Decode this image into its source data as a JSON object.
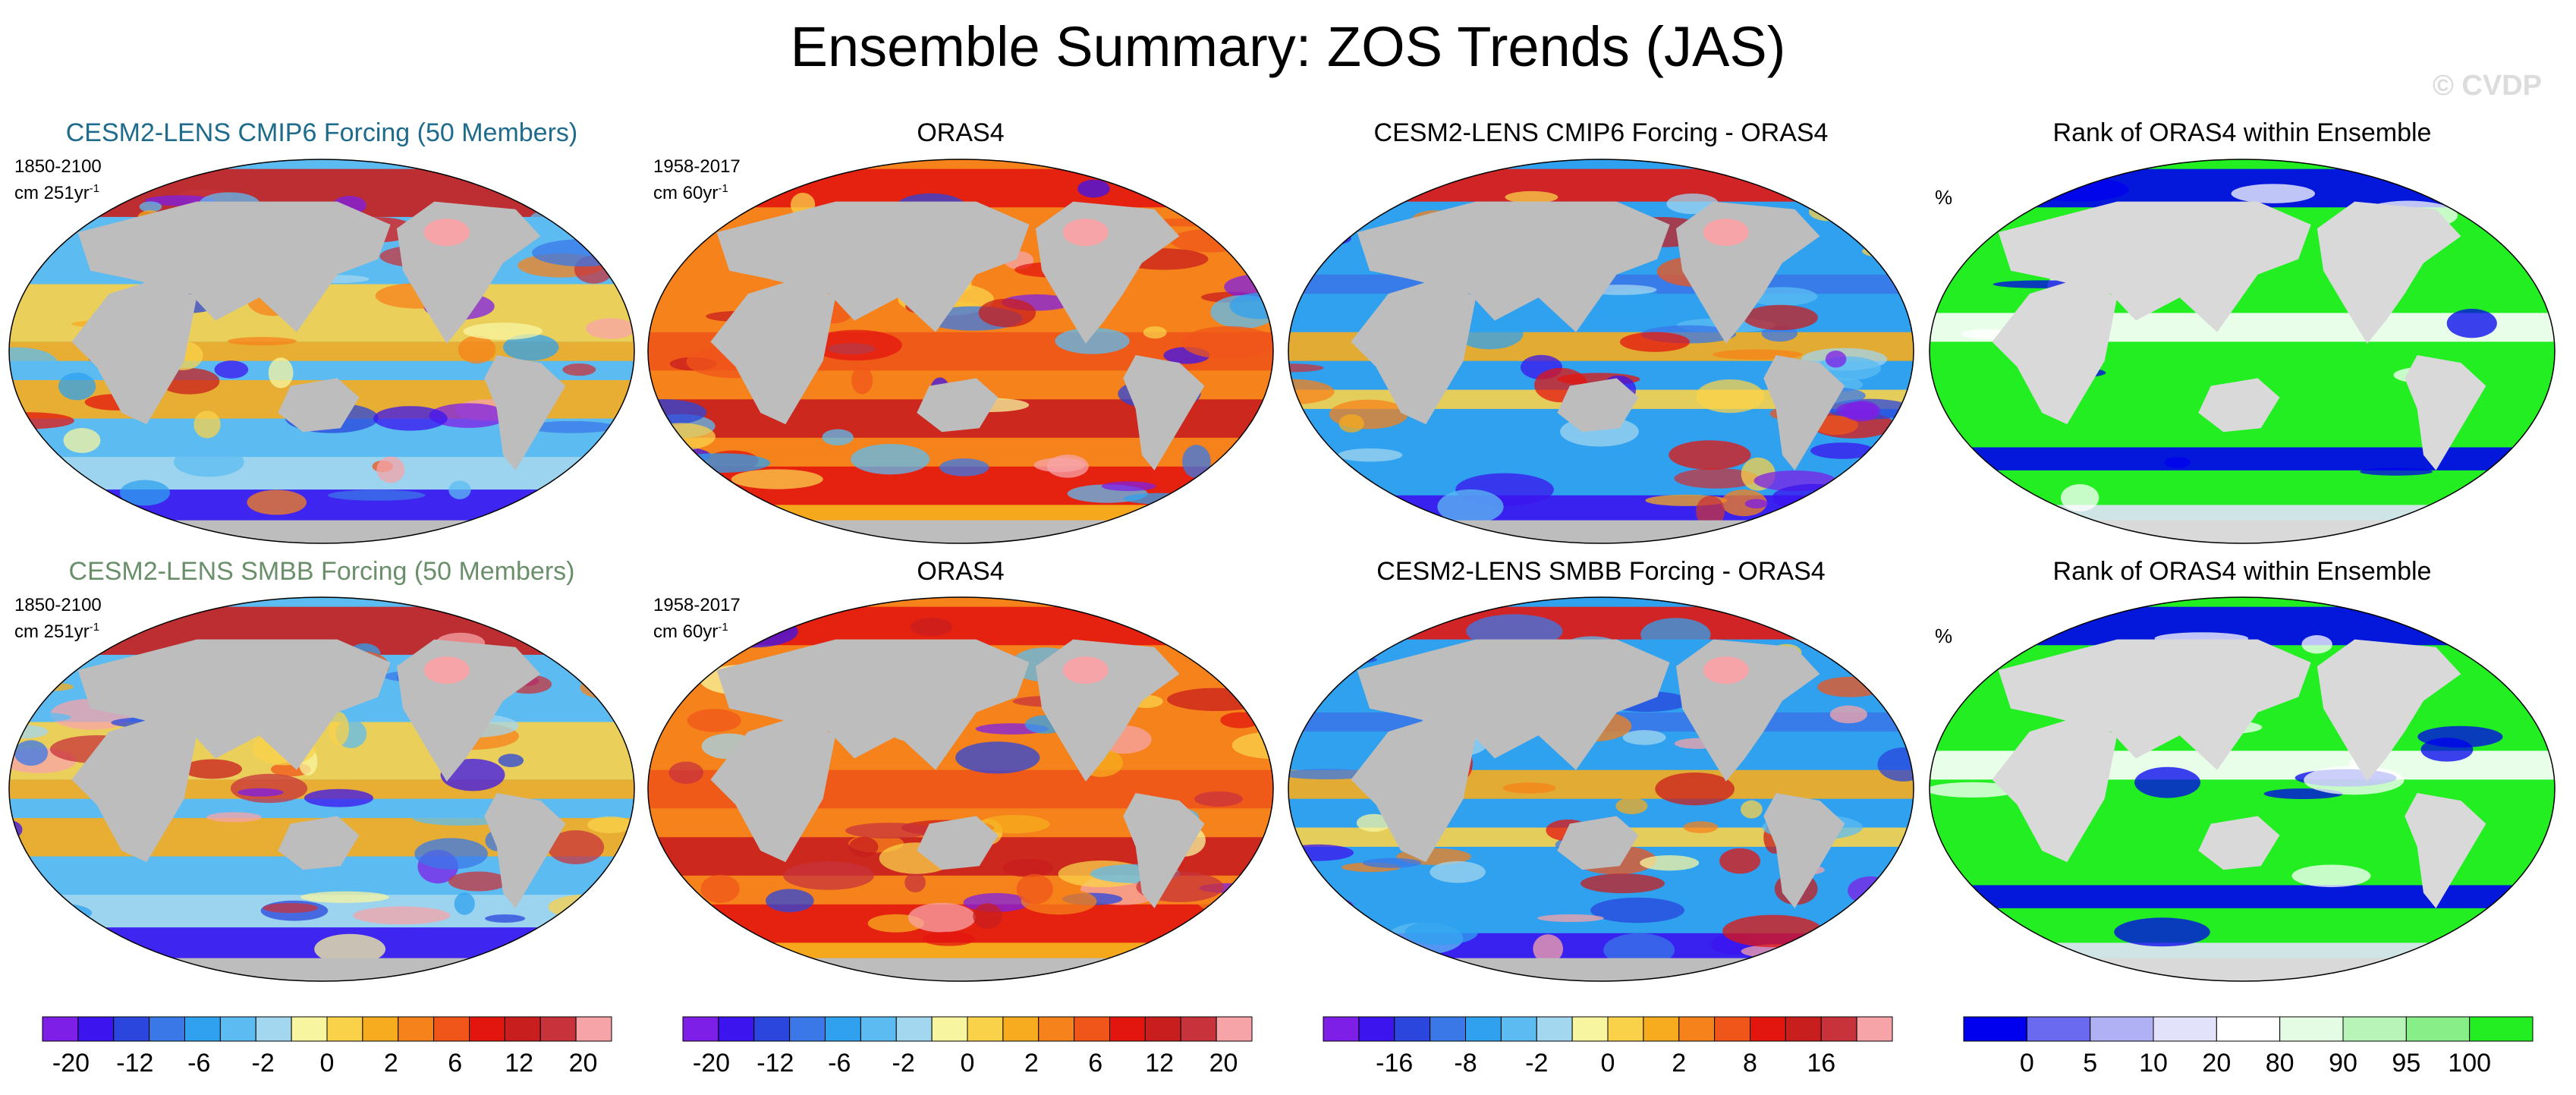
{
  "header": {
    "title": "Ensemble Summary: ZOS Trends (JAS)",
    "watermark": "© CVDP"
  },
  "colors": {
    "land": "#bdbdbd",
    "insig": "#e1e1e1",
    "title_row1_left": "#1f6b8c",
    "title_row2_left": "#6a8f6a"
  },
  "chart_data": [
    {
      "type": "heatmap",
      "title": "CESM2-LENS CMIP6 Forcing (50 Members)",
      "period": "1850-2100",
      "units_prefix": "cm 251yr",
      "units_sup": "-1",
      "palette": "diverging",
      "colorbar_ticks": [
        "-20",
        "-12",
        "-6",
        "-2",
        "0",
        "2",
        "6",
        "12",
        "20"
      ]
    },
    {
      "type": "heatmap",
      "title": "ORAS4",
      "period": "1958-2017",
      "units_prefix": "cm 60yr",
      "units_sup": "-1",
      "palette": "diverging",
      "colorbar_ticks": [
        "-20",
        "-12",
        "-6",
        "-2",
        "0",
        "2",
        "6",
        "12",
        "20"
      ]
    },
    {
      "type": "heatmap",
      "title": "CESM2-LENS CMIP6 Forcing - ORAS4",
      "palette": "diverging",
      "colorbar_ticks": [
        "-16",
        "-8",
        "-2",
        "0",
        "2",
        "8",
        "16"
      ]
    },
    {
      "type": "heatmap",
      "title": "Rank of ORAS4 within Ensemble",
      "units": "%",
      "palette": "rank",
      "colorbar_ticks": [
        "0",
        "5",
        "10",
        "20",
        "80",
        "90",
        "95",
        "100"
      ]
    },
    {
      "type": "heatmap",
      "title": "CESM2-LENS SMBB Forcing (50 Members)",
      "period": "1850-2100",
      "units_prefix": "cm 251yr",
      "units_sup": "-1",
      "palette": "diverging"
    },
    {
      "type": "heatmap",
      "title": "ORAS4",
      "period": "1958-2017",
      "units_prefix": "cm 60yr",
      "units_sup": "-1",
      "palette": "diverging"
    },
    {
      "type": "heatmap",
      "title": "CESM2-LENS SMBB Forcing - ORAS4",
      "palette": "diverging"
    },
    {
      "type": "heatmap",
      "title": "Rank of ORAS4 within Ensemble",
      "units": "%",
      "palette": "rank"
    }
  ],
  "palettes": {
    "diverging": [
      "#7d1fe6",
      "#3b14ee",
      "#2a46dc",
      "#3a78e8",
      "#2fa1ef",
      "#5cbcf1",
      "#a3d6ef",
      "#f7f5a0",
      "#f9d24a",
      "#f6ac1e",
      "#f5821a",
      "#f0551a",
      "#e3160f",
      "#c81e1e",
      "#c8333b",
      "#f7a4a8"
    ],
    "rank": [
      "#0000ee",
      "#6a6af0",
      "#b0b0f4",
      "#e2e2fa",
      "#ffffff",
      "#e4fbe4",
      "#b8f4b8",
      "#88ee88",
      "#22ee22"
    ]
  }
}
